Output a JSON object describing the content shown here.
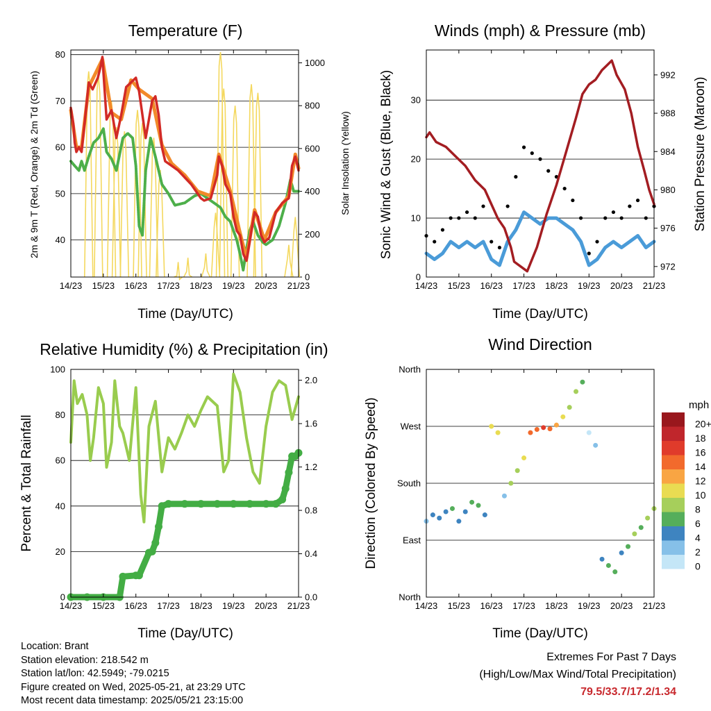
{
  "panels": {
    "temperature": {
      "title": "Temperature (F)",
      "ylabel_left": "2m & 9m T (Red, Orange) & 2m Td (Green)",
      "ylabel_right": "Solar Insolation (Yellow)",
      "xlabel": "Time (Day/UTC)"
    },
    "winds": {
      "title": "Winds (mph) & Pressure (mb)",
      "ylabel_left": "Sonic Wind & Gust (Blue, Black)",
      "ylabel_right": "Station Pressure (Maroon)",
      "xlabel": "Time (Day/UTC)"
    },
    "humidity": {
      "title": "Relative Humidity (%) & Precipitation (in)",
      "ylabel_left": "Percent & Total Rainfall",
      "xlabel": "Time (Day/UTC)"
    },
    "direction": {
      "title": "Wind Direction",
      "ylabel_left": "Direction (Colored By Speed)",
      "xlabel": "Time (Day/UTC)"
    }
  },
  "colorbar": {
    "unit": "mph",
    "labels": [
      "20+",
      "18",
      "16",
      "14",
      "12",
      "10",
      "8",
      "6",
      "4",
      "2",
      "0"
    ],
    "colors": [
      "#99171d",
      "#c0262c",
      "#e03b2b",
      "#f26a2c",
      "#f9a543",
      "#e9dc52",
      "#a6cf5b",
      "#55ae5b",
      "#3e84c0",
      "#86c0e8",
      "#c4e6f7"
    ]
  },
  "info": {
    "location": "Location: Brant",
    "elevation": "Station elevation: 218.542 m",
    "latlon": "Station lat/lon: 42.5949; -79.0215",
    "created": "Figure created on Wed, 2025-05-21, at 23:29 UTC",
    "recent": "Most recent data timestamp: 2025/05/21 23:15:00"
  },
  "extremes": {
    "heading": "Extremes For Past 7 Days",
    "sub": "(High/Low/Max Wind/Total Precipitation)",
    "values": "79.5/33.7/17.2/1.34"
  },
  "chart_data": [
    {
      "type": "line",
      "title": "Temperature (F)",
      "xlabel": "Time (Day/UTC)",
      "ylabel": "2m & 9m T (Red, Orange) & 2m Td (Green)",
      "y2label": "Solar Insolation (Yellow)",
      "x_ticks": [
        "14/23",
        "15/23",
        "16/23",
        "17/23",
        "18/23",
        "19/23",
        "20/23",
        "21/23"
      ],
      "xlim": [
        0,
        7
      ],
      "ylim": [
        32,
        81
      ],
      "y_ticks": [
        40,
        50,
        60,
        70,
        80
      ],
      "y2lim": [
        0,
        1060
      ],
      "y2_ticks": [
        0,
        200,
        400,
        600,
        800,
        1000
      ],
      "series": [
        {
          "name": "2m T",
          "color": "#d22a26",
          "axis": "left",
          "x": [
            0,
            0.08,
            0.12,
            0.17,
            0.25,
            0.33,
            0.42,
            0.55,
            0.67,
            0.83,
            0.9,
            0.97,
            1.1,
            1.25,
            1.4,
            1.55,
            1.7,
            1.85,
            2.0,
            2.1,
            2.3,
            2.5,
            2.6,
            2.7,
            2.8,
            2.9,
            3.1,
            3.3,
            3.5,
            3.7,
            3.9,
            4.0,
            4.1,
            4.3,
            4.5,
            4.55,
            4.65,
            4.75,
            4.9,
            5.0,
            5.1,
            5.2,
            5.3,
            5.4,
            5.55,
            5.65,
            5.75,
            5.85,
            5.95,
            6.1,
            6.3,
            6.5,
            6.7,
            6.8,
            6.9,
            7.0
          ],
          "y": [
            68.5,
            65,
            61,
            59,
            60,
            59,
            65,
            74,
            72.5,
            75,
            77,
            79.5,
            66,
            68,
            62,
            67,
            73,
            74,
            75,
            72,
            62,
            70,
            71,
            67,
            60,
            57,
            56,
            55,
            53.5,
            52,
            50,
            49,
            48.5,
            49,
            54,
            58,
            56,
            52,
            50,
            45,
            42,
            41,
            37,
            35.5,
            42,
            46,
            45,
            41,
            39.5,
            40.5,
            46,
            48,
            49,
            56,
            58,
            55
          ]
        },
        {
          "name": "9m T",
          "color": "#f28a2a",
          "axis": "left",
          "x": [
            0,
            0.17,
            0.33,
            0.55,
            0.97,
            1.25,
            1.55,
            1.85,
            2.1,
            2.5,
            2.8,
            3.1,
            3.5,
            3.9,
            4.3,
            4.55,
            4.9,
            5.2,
            5.4,
            5.65,
            5.95,
            6.3,
            6.7,
            6.9,
            7.0
          ],
          "y": [
            68,
            60,
            60,
            73,
            79,
            67.5,
            66,
            74.5,
            72.5,
            70.5,
            60.5,
            56.5,
            54,
            50.5,
            49.5,
            58.5,
            50.5,
            41.5,
            36,
            46.5,
            40,
            46,
            49.5,
            58.5,
            55.5
          ]
        },
        {
          "name": "2m Td",
          "color": "#4daf4a",
          "axis": "left",
          "x": [
            0,
            0.12,
            0.25,
            0.33,
            0.42,
            0.55,
            0.7,
            0.85,
            1.0,
            1.1,
            1.25,
            1.4,
            1.6,
            1.75,
            1.9,
            2.0,
            2.1,
            2.2,
            2.3,
            2.45,
            2.6,
            2.7,
            2.8,
            3.0,
            3.2,
            3.5,
            3.8,
            4.0,
            4.2,
            4.4,
            4.6,
            4.75,
            4.9,
            5.0,
            5.1,
            5.2,
            5.3,
            5.4,
            5.5,
            5.6,
            5.75,
            5.9,
            6.0,
            6.2,
            6.4,
            6.6,
            6.75,
            6.85,
            7.0
          ],
          "y": [
            57,
            56,
            55,
            57,
            55,
            58,
            61,
            62,
            64,
            59,
            57.5,
            55,
            62,
            63,
            62,
            56,
            43,
            41,
            55,
            62,
            58,
            55,
            52,
            50,
            47.5,
            48,
            49.5,
            50,
            49,
            48,
            47,
            45,
            44,
            42,
            40,
            37,
            33.5,
            38,
            42,
            44,
            41,
            39.5,
            39,
            40,
            43,
            48,
            53,
            50.5,
            50.5
          ]
        },
        {
          "name": "Solar",
          "color": "#f4d85e",
          "axis": "right",
          "style": "spikes",
          "peaks": [
            [
              0.55,
              960
            ],
            [
              0.85,
              940
            ],
            [
              1.25,
              820
            ],
            [
              1.4,
              700
            ],
            [
              1.65,
              680
            ],
            [
              2.05,
              780
            ],
            [
              2.2,
              720
            ],
            [
              2.55,
              650
            ],
            [
              2.75,
              500
            ],
            [
              3.3,
              70
            ],
            [
              3.6,
              90
            ],
            [
              4.15,
              110
            ],
            [
              4.45,
              300
            ],
            [
              4.6,
              1050
            ],
            [
              4.7,
              880
            ],
            [
              5.05,
              800
            ],
            [
              5.55,
              900
            ],
            [
              5.75,
              860
            ],
            [
              6.7,
              150
            ],
            [
              6.9,
              280
            ]
          ]
        }
      ]
    },
    {
      "type": "line",
      "title": "Winds (mph) & Pressure (mb)",
      "xlabel": "Time (Day/UTC)",
      "ylabel": "Sonic Wind & Gust (Blue, Black)",
      "y2label": "Station Pressure (Maroon)",
      "x_ticks": [
        "14/23",
        "15/23",
        "16/23",
        "17/23",
        "18/23",
        "19/23",
        "20/23",
        "21/23"
      ],
      "xlim": [
        0,
        7
      ],
      "ylim": [
        0,
        38.5
      ],
      "y_ticks": [
        0,
        10,
        20,
        30
      ],
      "y2lim": [
        970.9,
        994.6
      ],
      "y2_ticks": [
        972,
        976,
        980,
        984,
        988,
        992
      ],
      "series": [
        {
          "name": "Wind",
          "color": "#4a9bd8",
          "axis": "left",
          "x": [
            0,
            0.25,
            0.5,
            0.75,
            1.0,
            1.25,
            1.5,
            1.75,
            2.0,
            2.25,
            2.5,
            2.75,
            3.0,
            3.25,
            3.5,
            3.75,
            4.0,
            4.25,
            4.5,
            4.75,
            5.0,
            5.25,
            5.5,
            5.75,
            6.0,
            6.25,
            6.5,
            6.75,
            7.0
          ],
          "y": [
            4,
            3,
            4,
            6,
            5,
            6,
            5,
            6,
            3,
            2,
            6,
            8,
            11,
            10,
            9,
            10,
            10,
            9,
            8,
            6,
            2,
            3,
            5,
            6,
            5,
            6,
            7,
            5,
            6
          ]
        },
        {
          "name": "Gust",
          "color": "#000000",
          "axis": "left",
          "style": "dots",
          "x": [
            0,
            0.25,
            0.5,
            0.75,
            1.0,
            1.25,
            1.5,
            1.75,
            2.0,
            2.25,
            2.5,
            2.75,
            3.0,
            3.25,
            3.5,
            3.75,
            4.0,
            4.25,
            4.5,
            4.75,
            5.0,
            5.25,
            5.5,
            5.75,
            6.0,
            6.25,
            6.5,
            6.75,
            7.0
          ],
          "y": [
            7,
            6,
            8,
            10,
            10,
            11,
            10,
            12,
            6,
            5,
            12,
            17,
            22,
            21,
            20,
            18,
            17,
            15,
            13,
            10,
            4,
            6,
            10,
            11,
            10,
            12,
            13,
            10,
            12
          ]
        },
        {
          "name": "Pressure",
          "color": "#a31d22",
          "axis": "right",
          "x": [
            0,
            0.1,
            0.3,
            0.6,
            0.9,
            1.2,
            1.5,
            1.8,
            2.0,
            2.2,
            2.4,
            2.6,
            2.7,
            2.9,
            3.1,
            3.4,
            3.7,
            4.0,
            4.3,
            4.6,
            4.8,
            5.0,
            5.2,
            5.4,
            5.55,
            5.7,
            5.85,
            6.1,
            6.3,
            6.5,
            6.7,
            6.85,
            7.0
          ],
          "y": [
            985.5,
            986,
            985,
            984.5,
            983.5,
            982.5,
            981,
            980,
            978.5,
            977,
            976,
            974,
            972.5,
            972,
            971.5,
            974,
            977.5,
            980.5,
            984,
            987.5,
            990,
            991,
            991.5,
            992.5,
            993,
            993.5,
            992,
            990.5,
            988,
            984.5,
            982,
            980,
            978.5
          ]
        }
      ]
    },
    {
      "type": "line",
      "title": "Relative Humidity (%) & Precipitation (in)",
      "xlabel": "Time (Day/UTC)",
      "ylabel": "Percent & Total Rainfall",
      "x_ticks": [
        "14/23",
        "15/23",
        "16/23",
        "17/23",
        "18/23",
        "19/23",
        "20/23",
        "21/23"
      ],
      "xlim": [
        0,
        7
      ],
      "ylim": [
        0,
        100
      ],
      "y_ticks": [
        0,
        20,
        40,
        60,
        80,
        100
      ],
      "y2lim": [
        0,
        2.1
      ],
      "y2_ticks": [
        "0.0",
        "0.4",
        "0.8",
        "1.2",
        "1.6",
        "2.0"
      ],
      "series": [
        {
          "name": "Relative Humidity",
          "color": "#99cc4e",
          "axis": "left",
          "x": [
            0,
            0.1,
            0.2,
            0.35,
            0.5,
            0.6,
            0.7,
            0.85,
            1.0,
            1.1,
            1.25,
            1.35,
            1.5,
            1.6,
            1.8,
            2.0,
            2.15,
            2.25,
            2.4,
            2.6,
            2.8,
            3.0,
            3.2,
            3.4,
            3.6,
            3.8,
            4.0,
            4.2,
            4.5,
            4.7,
            4.85,
            5.0,
            5.2,
            5.4,
            5.6,
            5.8,
            6.0,
            6.2,
            6.4,
            6.6,
            6.8,
            7.0
          ],
          "y": [
            68,
            95,
            85,
            89,
            80,
            60,
            70,
            92,
            85,
            57,
            68,
            95,
            75,
            72,
            60,
            92,
            45,
            33,
            75,
            86,
            55,
            70,
            65,
            72,
            80,
            75,
            82,
            88,
            84,
            55,
            60,
            98,
            90,
            70,
            55,
            50,
            75,
            90,
            95,
            93,
            78,
            88
          ]
        },
        {
          "name": "Total Precipitation",
          "color": "#43ad44",
          "axis": "right",
          "style": "dots",
          "x": [
            0,
            0.5,
            1.0,
            1.5,
            1.6,
            2.0,
            2.1,
            2.4,
            2.5,
            2.6,
            2.7,
            2.8,
            3.0,
            3.5,
            4.0,
            4.5,
            5.0,
            5.5,
            6.0,
            6.3,
            6.5,
            6.6,
            6.7,
            6.8,
            6.9,
            7.0
          ],
          "y": [
            0.0,
            0.0,
            0.0,
            0.0,
            0.19,
            0.2,
            0.2,
            0.41,
            0.42,
            0.5,
            0.65,
            0.84,
            0.86,
            0.86,
            0.86,
            0.86,
            0.86,
            0.86,
            0.86,
            0.86,
            0.9,
            1.0,
            1.15,
            1.3,
            1.3,
            1.33
          ]
        }
      ]
    },
    {
      "type": "scatter",
      "title": "Wind Direction",
      "xlabel": "Time (Day/UTC)",
      "ylabel": "Direction (Colored By Speed)",
      "x_ticks": [
        "14/23",
        "15/23",
        "16/23",
        "17/23",
        "18/23",
        "19/23",
        "20/23",
        "21/23"
      ],
      "xlim": [
        0,
        7
      ],
      "y_ticks": [
        "North",
        "East",
        "South",
        "West",
        "North"
      ],
      "ylim": [
        0,
        360
      ],
      "colorbar_label": "mph",
      "points_x": [
        0.0,
        0.2,
        0.4,
        0.6,
        0.8,
        1.0,
        1.2,
        1.4,
        1.6,
        1.8,
        2.0,
        2.2,
        2.4,
        2.6,
        2.8,
        3.0,
        3.2,
        3.4,
        3.6,
        3.8,
        4.0,
        4.2,
        4.4,
        4.6,
        4.8,
        5.0,
        5.2,
        5.4,
        5.6,
        5.8,
        6.0,
        6.2,
        6.4,
        6.6,
        6.8,
        7.0
      ],
      "points_y": [
        120,
        130,
        125,
        135,
        140,
        120,
        135,
        150,
        145,
        130,
        270,
        260,
        160,
        180,
        200,
        220,
        260,
        265,
        268,
        266,
        272,
        285,
        300,
        325,
        340,
        260,
        240,
        60,
        50,
        40,
        70,
        80,
        100,
        110,
        125,
        140
      ],
      "points_speed": [
        3,
        4,
        5,
        4,
        6,
        5,
        4,
        6,
        7,
        5,
        11,
        10,
        3,
        8,
        9,
        11,
        14,
        15,
        16,
        15,
        13,
        10,
        8,
        9,
        6,
        1,
        2,
        5,
        7,
        6,
        5,
        6,
        8,
        7,
        8,
        9
      ]
    }
  ]
}
